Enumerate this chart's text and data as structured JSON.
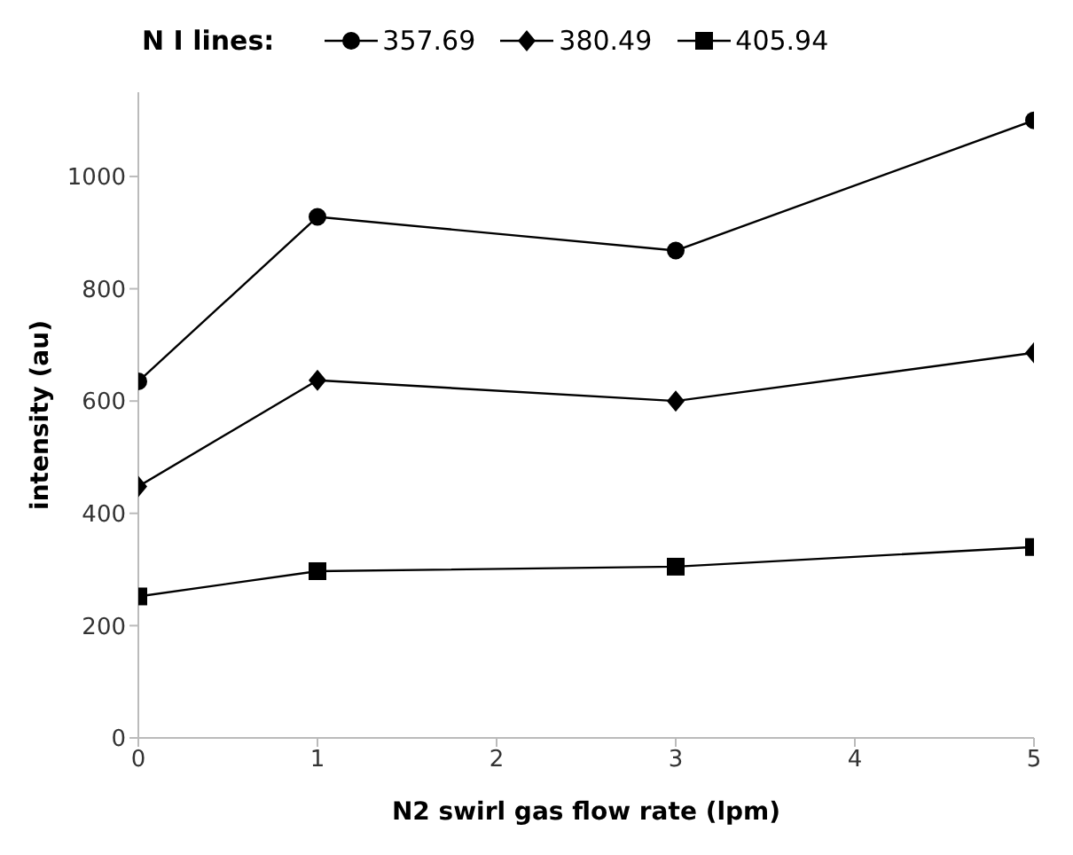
{
  "chart_data": {
    "type": "line",
    "xlabel": "N2 swirl gas flow rate (lpm)",
    "ylabel": "intensity (au)",
    "legend_title": "N I lines:",
    "legend": "top",
    "grid": false,
    "line_style": "solid",
    "x": [
      0,
      1,
      3,
      5
    ],
    "xlim": [
      0,
      5
    ],
    "xticks": [
      0,
      1,
      2,
      3,
      4,
      5
    ],
    "ylim": [
      0,
      1150
    ],
    "yticks": [
      0,
      200,
      400,
      600,
      800,
      1000
    ],
    "series": [
      {
        "name": "357.69",
        "color": "#000000",
        "marker": "circle",
        "values": [
          635,
          928,
          868,
          1100
        ]
      },
      {
        "name": "380.49",
        "color": "#000000",
        "marker": "diamond",
        "values": [
          448,
          637,
          600,
          686
        ]
      },
      {
        "name": "405.94",
        "color": "#000000",
        "marker": "square",
        "values": [
          252,
          297,
          305,
          340
        ]
      }
    ]
  }
}
